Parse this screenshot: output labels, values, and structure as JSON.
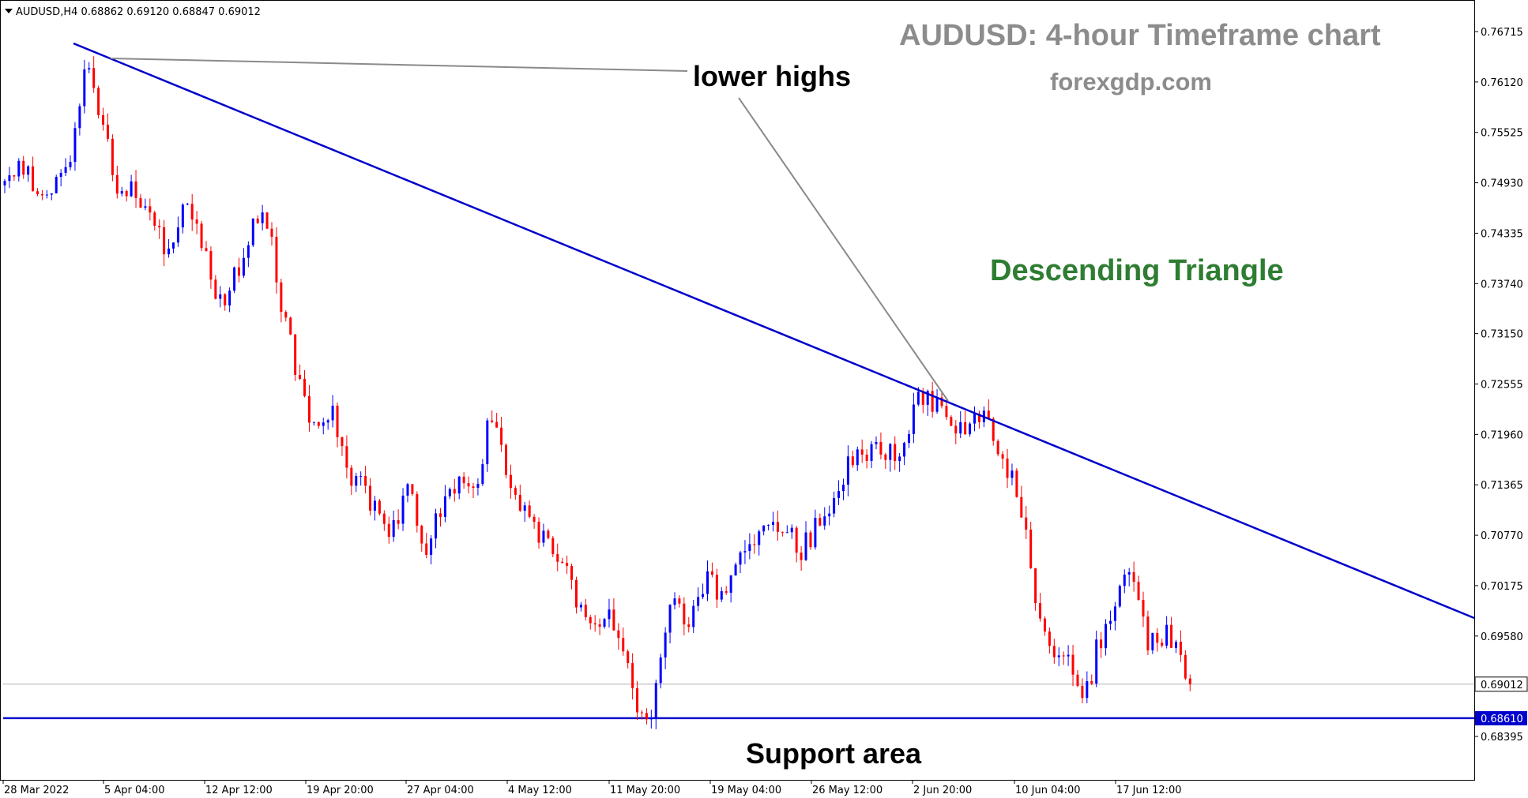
{
  "header": {
    "symbol_line": "AUDUSD,H4  0.68862 0.69120 0.68847 0.69012"
  },
  "title": "AUDUSD: 4-hour Timeframe chart",
  "subtitle": "forexgdp.com",
  "annotations": {
    "lower_highs": "lower highs",
    "pattern": "Descending Triangle",
    "support": "Support area"
  },
  "price_tags": {
    "current": "0.69012",
    "support": "0.68610"
  },
  "colors": {
    "bull": "#0000ff",
    "bear": "#ff0000",
    "trendline": "#0000cc",
    "pattern_text": "#2e7d32",
    "title_text": "#8c8c8c"
  },
  "chart_data": {
    "type": "candlestick",
    "symbol": "AUDUSD",
    "timeframe": "H4",
    "title": "AUDUSD: 4-hour Timeframe chart",
    "ylim": [
      0.6812,
      0.77
    ],
    "y_ticks": [
      "0.76715",
      "0.76120",
      "0.75525",
      "0.74930",
      "0.74335",
      "0.73740",
      "0.73150",
      "0.72555",
      "0.71960",
      "0.71365",
      "0.70770",
      "0.70175",
      "0.69580",
      "0.68395"
    ],
    "x_ticks": [
      "28 Mar 2022",
      "5 Apr 04:00",
      "12 Apr 12:00",
      "19 Apr 20:00",
      "27 Apr 04:00",
      "4 May 12:00",
      "11 May 20:00",
      "19 May 04:00",
      "26 May 12:00",
      "2 Jun 20:00",
      "10 Jun 04:00",
      "17 Jun 12:00"
    ],
    "n_bars": 254,
    "current_price": 0.69012,
    "support_level": 0.6861,
    "trendline": {
      "from": {
        "bar": 14,
        "price": 0.7658
      },
      "to": {
        "bar": 252,
        "price": 0.6992
      }
    },
    "lower_highs_marker": {
      "bar": 18,
      "price": 0.7641
    },
    "price_path": [
      [
        0,
        0.749
      ],
      [
        4,
        0.751
      ],
      [
        8,
        0.748
      ],
      [
        14,
        0.751
      ],
      [
        17,
        0.764
      ],
      [
        20,
        0.758
      ],
      [
        24,
        0.749
      ],
      [
        30,
        0.747
      ],
      [
        35,
        0.741
      ],
      [
        38,
        0.747
      ],
      [
        42,
        0.743
      ],
      [
        46,
        0.735
      ],
      [
        50,
        0.739
      ],
      [
        54,
        0.746
      ],
      [
        57,
        0.744
      ],
      [
        58,
        0.738
      ],
      [
        61,
        0.73
      ],
      [
        63,
        0.725
      ],
      [
        66,
        0.72
      ],
      [
        70,
        0.722
      ],
      [
        74,
        0.715
      ],
      [
        78,
        0.712
      ],
      [
        82,
        0.708
      ],
      [
        86,
        0.713
      ],
      [
        90,
        0.706
      ],
      [
        94,
        0.712
      ],
      [
        98,
        0.715
      ],
      [
        101,
        0.713
      ],
      [
        103,
        0.722
      ],
      [
        106,
        0.718
      ],
      [
        110,
        0.711
      ],
      [
        114,
        0.708
      ],
      [
        118,
        0.706
      ],
      [
        121,
        0.701
      ],
      [
        125,
        0.696
      ],
      [
        129,
        0.698
      ],
      [
        132,
        0.694
      ],
      [
        135,
        0.686
      ],
      [
        138,
        0.687
      ],
      [
        142,
        0.699
      ],
      [
        146,
        0.698
      ],
      [
        150,
        0.702
      ],
      [
        154,
        0.701
      ],
      [
        158,
        0.706
      ],
      [
        162,
        0.708
      ],
      [
        166,
        0.709
      ],
      [
        170,
        0.706
      ],
      [
        176,
        0.711
      ],
      [
        180,
        0.716
      ],
      [
        186,
        0.718
      ],
      [
        191,
        0.717
      ],
      [
        194,
        0.723
      ],
      [
        197,
        0.724
      ],
      [
        200,
        0.722
      ],
      [
        204,
        0.72
      ],
      [
        208,
        0.722
      ],
      [
        212,
        0.718
      ],
      [
        216,
        0.713
      ],
      [
        220,
        0.701
      ],
      [
        223,
        0.695
      ],
      [
        227,
        0.693
      ],
      [
        230,
        0.687
      ],
      [
        233,
        0.694
      ],
      [
        237,
        0.7
      ],
      [
        240,
        0.703
      ],
      [
        244,
        0.695
      ],
      [
        248,
        0.696
      ],
      [
        251,
        0.693
      ],
      [
        253,
        0.6901
      ]
    ]
  }
}
